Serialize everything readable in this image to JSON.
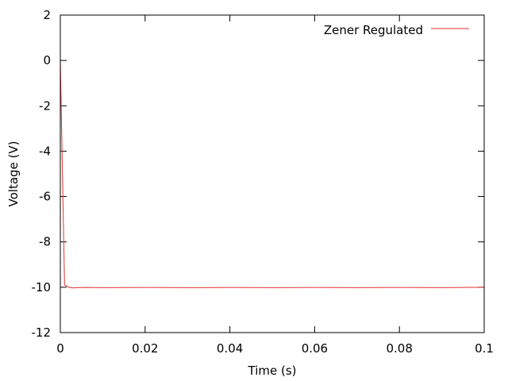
{
  "chart_data": {
    "type": "line",
    "title": "",
    "xlabel": "Time (s)",
    "ylabel": "Voltage (V)",
    "xlim": [
      0,
      0.1
    ],
    "ylim": [
      -12,
      2
    ],
    "xticks": [
      0,
      0.02,
      0.04,
      0.06,
      0.08,
      0.1
    ],
    "xtick_labels": [
      "0",
      "0.02",
      "0.04",
      "0.06",
      "0.08",
      "0.1"
    ],
    "yticks": [
      -12,
      -10,
      -8,
      -6,
      -4,
      -2,
      0,
      2
    ],
    "ytick_labels": [
      "-12",
      "-10",
      "-8",
      "-6",
      "-4",
      "-2",
      "0",
      "2"
    ],
    "grid": false,
    "legend_position": "top-right",
    "series": [
      {
        "name": "Zener Regulated",
        "color": "#e0312f",
        "x": [
          0,
          0.001,
          0.002,
          0.003,
          0.004,
          0.006,
          0.01,
          0.02,
          0.03,
          0.04,
          0.05,
          0.06,
          0.07,
          0.08,
          0.09,
          0.1
        ],
        "y": [
          0,
          -9.9,
          -10.0,
          -10.03,
          -10.02,
          -10.01,
          -10.02,
          -10.01,
          -10.02,
          -10.01,
          -10.02,
          -10.01,
          -10.02,
          -10.01,
          -10.02,
          -10.0
        ]
      }
    ]
  }
}
